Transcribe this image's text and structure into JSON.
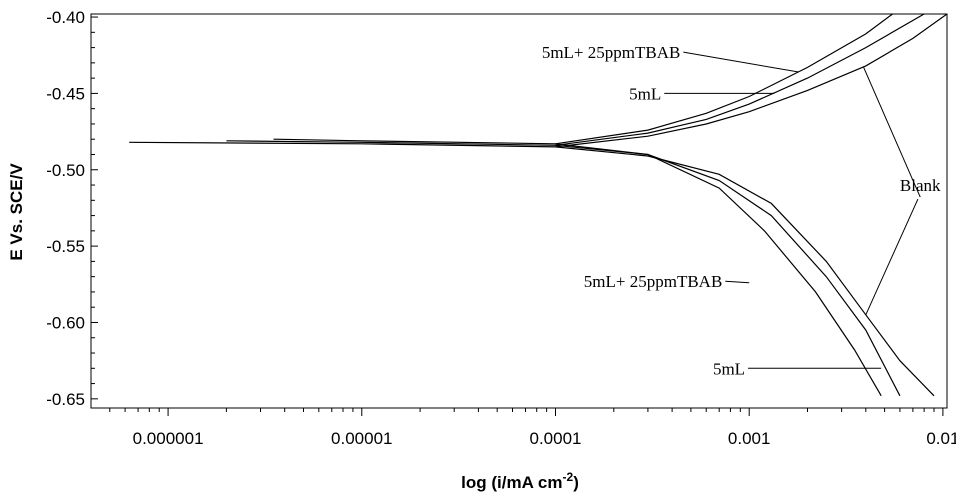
{
  "chart_data": {
    "type": "line",
    "xlabel": "log (i/mA cm",
    "xlabel_sup": "-2",
    "xlabel_close": ")",
    "ylabel": "E Vs. SCE/V",
    "x_scale": "log",
    "xlim": [
      4e-07,
      0.0105
    ],
    "ylim": [
      -0.656,
      -0.398
    ],
    "x_ticks": [
      {
        "value": 1e-06,
        "label": "0.000001"
      },
      {
        "value": 1e-05,
        "label": "0.00001"
      },
      {
        "value": 0.0001,
        "label": "0.0001"
      },
      {
        "value": 0.001,
        "label": "0.001"
      },
      {
        "value": 0.01,
        "label": "0.01"
      }
    ],
    "y_ticks": [
      {
        "value": -0.4,
        "label": "-0.40"
      },
      {
        "value": -0.45,
        "label": "-0.45"
      },
      {
        "value": -0.5,
        "label": "-0.50"
      },
      {
        "value": -0.55,
        "label": "-0.55"
      },
      {
        "value": -0.6,
        "label": "-0.60"
      },
      {
        "value": -0.65,
        "label": "-0.65"
      }
    ],
    "grid": false,
    "series": [
      {
        "name": "Blank",
        "anodic": [
          [
            0.0001,
            -0.485
          ],
          [
            0.0003,
            -0.478
          ],
          [
            0.0006,
            -0.47
          ],
          [
            0.001,
            -0.462
          ],
          [
            0.002,
            -0.448
          ],
          [
            0.004,
            -0.432
          ],
          [
            0.007,
            -0.414
          ],
          [
            0.0105,
            -0.398
          ]
        ],
        "cathodic": [
          [
            6.3e-07,
            -0.482
          ],
          [
            1e-05,
            -0.483
          ],
          [
            0.0001,
            -0.485
          ],
          [
            0.0003,
            -0.491
          ],
          [
            0.0007,
            -0.503
          ],
          [
            0.0013,
            -0.522
          ],
          [
            0.0025,
            -0.56
          ],
          [
            0.004,
            -0.595
          ],
          [
            0.006,
            -0.625
          ],
          [
            0.009,
            -0.648
          ]
        ]
      },
      {
        "name": "5mL",
        "anodic": [
          [
            0.0001,
            -0.484
          ],
          [
            0.0003,
            -0.476
          ],
          [
            0.0006,
            -0.467
          ],
          [
            0.001,
            -0.457
          ],
          [
            0.002,
            -0.44
          ],
          [
            0.004,
            -0.42
          ],
          [
            0.008,
            -0.398
          ]
        ],
        "cathodic": [
          [
            2e-06,
            -0.481
          ],
          [
            1e-05,
            -0.482
          ],
          [
            0.0001,
            -0.484
          ],
          [
            0.0003,
            -0.49
          ],
          [
            0.0007,
            -0.507
          ],
          [
            0.0013,
            -0.53
          ],
          [
            0.0025,
            -0.57
          ],
          [
            0.004,
            -0.605
          ],
          [
            0.006,
            -0.648
          ]
        ]
      },
      {
        "name": "5mL+ 25ppmTBAB",
        "anodic": [
          [
            0.0001,
            -0.483
          ],
          [
            0.0003,
            -0.474
          ],
          [
            0.0006,
            -0.463
          ],
          [
            0.001,
            -0.452
          ],
          [
            0.002,
            -0.433
          ],
          [
            0.004,
            -0.411
          ],
          [
            0.0055,
            -0.398
          ]
        ],
        "cathodic": [
          [
            3.5e-06,
            -0.48
          ],
          [
            1e-05,
            -0.481
          ],
          [
            0.0001,
            -0.483
          ],
          [
            0.0003,
            -0.49
          ],
          [
            0.0007,
            -0.512
          ],
          [
            0.0012,
            -0.54
          ],
          [
            0.0022,
            -0.58
          ],
          [
            0.0035,
            -0.618
          ],
          [
            0.0048,
            -0.648
          ]
        ]
      }
    ],
    "annotations": [
      {
        "text": "5mL+ 25ppmTBAB",
        "target": {
          "series": 2,
          "branch": "anodic",
          "x": 0.0018,
          "y": -0.436
        },
        "label_x": 8.5e-05,
        "label_y": -0.423
      },
      {
        "text": "5mL",
        "target": {
          "series": 1,
          "branch": "anodic",
          "x": 0.00135,
          "y": -0.45
        },
        "label_x": 0.00024,
        "label_y": -0.45
      },
      {
        "text": "Blank",
        "target": {
          "series": 0,
          "branch": "anodic",
          "x": 0.0039,
          "y": -0.433
        },
        "label_x": 0.006,
        "label_y": -0.51
      },
      {
        "text": "5mL+ 25ppmTBAB",
        "target": {
          "series": 2,
          "branch": "cathodic",
          "x": 0.001,
          "y": -0.574
        },
        "label_x": 0.00014,
        "label_y": -0.573
      },
      {
        "text": "5mL",
        "target": {
          "series": 1,
          "branch": "cathodic",
          "x": 0.0048,
          "y": -0.63
        },
        "label_x": 0.00065,
        "label_y": -0.63
      }
    ]
  }
}
